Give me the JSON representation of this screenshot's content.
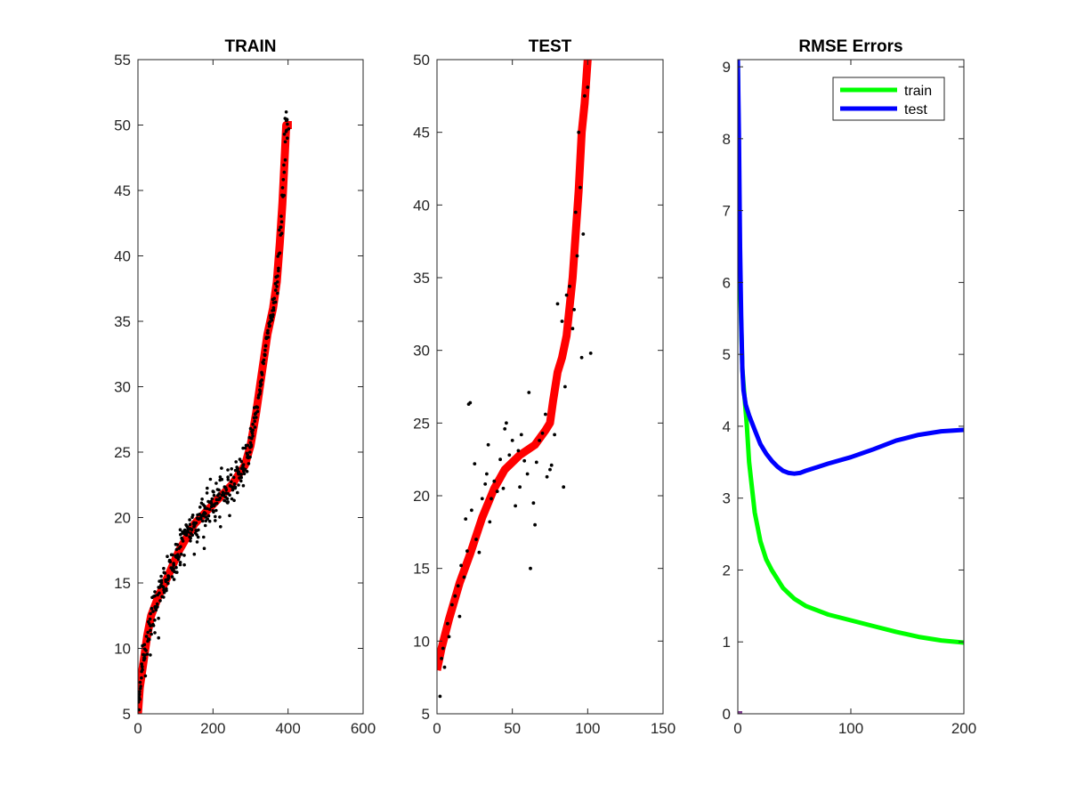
{
  "chart_data": [
    {
      "type": "scatter",
      "title": "TRAIN",
      "xlim": [
        0,
        600
      ],
      "ylim": [
        5,
        55
      ],
      "xticks": [
        "0",
        "200",
        "400",
        "600"
      ],
      "yticks": [
        "5",
        "10",
        "15",
        "20",
        "25",
        "30",
        "35",
        "40",
        "45",
        "50",
        "55"
      ],
      "colors": {
        "fit_line": "#ff0000",
        "points": "#000000"
      },
      "fit_line": [
        [
          0,
          5
        ],
        [
          5,
          7
        ],
        [
          15,
          9
        ],
        [
          25,
          11
        ],
        [
          35,
          12.5
        ],
        [
          55,
          14
        ],
        [
          80,
          15.5
        ],
        [
          110,
          17.5
        ],
        [
          150,
          19.5
        ],
        [
          200,
          21
        ],
        [
          250,
          22.5
        ],
        [
          285,
          24
        ],
        [
          300,
          25.5
        ],
        [
          315,
          28
        ],
        [
          330,
          31
        ],
        [
          345,
          34
        ],
        [
          360,
          36
        ],
        [
          370,
          38
        ],
        [
          378,
          41
        ],
        [
          385,
          44
        ],
        [
          390,
          47
        ],
        [
          395,
          50
        ],
        [
          410,
          50
        ]
      ],
      "points": {
        "count": 400,
        "spread_low_x": 0.6,
        "spread_high_x": 0.25,
        "outliers": [
          [
            5,
            6.1
          ],
          [
            10,
            8.8
          ],
          [
            12,
            10.2
          ],
          [
            20,
            7.9
          ],
          [
            33,
            9.5
          ],
          [
            45,
            11.2
          ],
          [
            55,
            10.8
          ],
          [
            70,
            14.5
          ],
          [
            95,
            16.5
          ],
          [
            120,
            18.8
          ],
          [
            150,
            17.2
          ],
          [
            175,
            18.5
          ],
          [
            200,
            22.0
          ],
          [
            220,
            19.3
          ],
          [
            240,
            21.2
          ],
          [
            260,
            23.6
          ],
          [
            280,
            25.3
          ],
          [
            300,
            26.8
          ],
          [
            330,
            30.5
          ],
          [
            360,
            35.5
          ],
          [
            380,
            42.2
          ],
          [
            390,
            49.3
          ],
          [
            392,
            50.5
          ],
          [
            395,
            51.0
          ],
          [
            398,
            49.0
          ]
        ]
      }
    },
    {
      "type": "scatter",
      "title": "TEST",
      "xlim": [
        0,
        150
      ],
      "ylim": [
        5,
        50
      ],
      "xticks": [
        "0",
        "50",
        "100",
        "150"
      ],
      "yticks": [
        "5",
        "10",
        "15",
        "20",
        "25",
        "30",
        "35",
        "40",
        "45",
        "50"
      ],
      "colors": {
        "fit_line": "#ff0000",
        "points": "#000000"
      },
      "fit_line": [
        [
          0,
          8
        ],
        [
          3,
          9.5
        ],
        [
          8,
          11.5
        ],
        [
          15,
          14
        ],
        [
          22,
          16
        ],
        [
          30,
          18.5
        ],
        [
          38,
          20.5
        ],
        [
          45,
          21.8
        ],
        [
          55,
          22.8
        ],
        [
          65,
          23.5
        ],
        [
          72,
          24.5
        ],
        [
          75,
          25
        ],
        [
          77,
          26.5
        ],
        [
          80,
          28.5
        ],
        [
          83,
          29.5
        ],
        [
          86,
          31
        ],
        [
          88,
          33
        ],
        [
          90,
          35
        ],
        [
          92,
          38
        ],
        [
          94,
          41
        ],
        [
          96,
          45
        ],
        [
          98,
          47
        ],
        [
          100,
          50
        ]
      ],
      "points": [
        [
          2,
          6.2
        ],
        [
          3,
          8.8
        ],
        [
          4,
          9.5
        ],
        [
          5,
          8.2
        ],
        [
          7,
          11.2
        ],
        [
          8,
          10.3
        ],
        [
          10,
          12.5
        ],
        [
          12,
          13.1
        ],
        [
          14,
          13.8
        ],
        [
          15,
          11.7
        ],
        [
          16,
          15.2
        ],
        [
          18,
          14.4
        ],
        [
          19,
          18.4
        ],
        [
          20,
          16.2
        ],
        [
          21,
          26.3
        ],
        [
          22,
          26.4
        ],
        [
          23,
          19.0
        ],
        [
          25,
          22.2
        ],
        [
          26,
          17.0
        ],
        [
          28,
          16.1
        ],
        [
          30,
          19.8
        ],
        [
          32,
          20.8
        ],
        [
          33,
          21.5
        ],
        [
          34,
          23.5
        ],
        [
          35,
          18.2
        ],
        [
          36,
          19.8
        ],
        [
          38,
          21.0
        ],
        [
          40,
          20.3
        ],
        [
          42,
          22.5
        ],
        [
          44,
          20.5
        ],
        [
          45,
          24.6
        ],
        [
          46,
          25.0
        ],
        [
          48,
          22.8
        ],
        [
          50,
          23.8
        ],
        [
          52,
          19.3
        ],
        [
          54,
          23.1
        ],
        [
          55,
          20.6
        ],
        [
          56,
          24.2
        ],
        [
          58,
          22.4
        ],
        [
          60,
          21.5
        ],
        [
          61,
          27.1
        ],
        [
          62,
          15.0
        ],
        [
          64,
          19.5
        ],
        [
          65,
          18.0
        ],
        [
          66,
          22.3
        ],
        [
          68,
          23.8
        ],
        [
          70,
          24.3
        ],
        [
          72,
          25.6
        ],
        [
          73,
          21.3
        ],
        [
          75,
          21.8
        ],
        [
          76,
          22.1
        ],
        [
          78,
          24.2
        ],
        [
          80,
          33.2
        ],
        [
          83,
          32.0
        ],
        [
          84,
          20.6
        ],
        [
          85,
          27.5
        ],
        [
          86,
          33.8
        ],
        [
          88,
          34.4
        ],
        [
          90,
          31.5
        ],
        [
          91,
          32.8
        ],
        [
          92,
          39.5
        ],
        [
          93,
          36.5
        ],
        [
          94,
          45.0
        ],
        [
          95,
          41.2
        ],
        [
          96,
          29.5
        ],
        [
          97,
          38.0
        ],
        [
          98,
          47.5
        ],
        [
          100,
          48.1
        ],
        [
          102,
          29.8
        ]
      ]
    },
    {
      "type": "line",
      "title": "RMSE Errors",
      "xlim": [
        0,
        200
      ],
      "ylim": [
        0,
        9.1
      ],
      "xticks": [
        "0",
        "100",
        "200"
      ],
      "yticks": [
        "0",
        "1",
        "2",
        "3",
        "4",
        "5",
        "6",
        "7",
        "8",
        "9"
      ],
      "legend": "top-right",
      "series": [
        {
          "name": "train",
          "color": "#00ff00",
          "x": [
            0,
            2,
            4,
            6,
            8,
            10,
            15,
            20,
            25,
            30,
            40,
            50,
            60,
            80,
            100,
            120,
            140,
            160,
            180,
            200
          ],
          "y": [
            9.1,
            6.0,
            4.8,
            4.4,
            4.0,
            3.5,
            2.8,
            2.4,
            2.15,
            2.0,
            1.75,
            1.6,
            1.5,
            1.38,
            1.3,
            1.22,
            1.14,
            1.07,
            1.02,
            0.99
          ]
        },
        {
          "name": "test",
          "color": "#0000ff",
          "x": [
            0,
            1,
            2,
            3,
            4,
            5,
            7,
            10,
            15,
            20,
            25,
            30,
            35,
            40,
            45,
            50,
            55,
            60,
            70,
            80,
            100,
            120,
            140,
            160,
            180,
            200
          ],
          "y": [
            9.1,
            8.0,
            6.5,
            5.5,
            4.8,
            4.5,
            4.3,
            4.15,
            3.95,
            3.75,
            3.62,
            3.52,
            3.44,
            3.38,
            3.35,
            3.34,
            3.35,
            3.38,
            3.43,
            3.48,
            3.57,
            3.68,
            3.8,
            3.88,
            3.93,
            3.95
          ]
        }
      ]
    }
  ]
}
